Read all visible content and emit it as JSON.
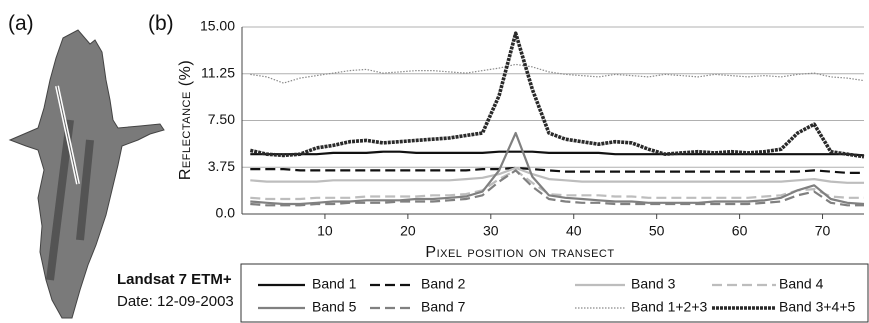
{
  "figure": {
    "panel_a_label": "(a)",
    "panel_b_label": "(b)",
    "image_caption": [
      "Landsat 7 ETM+",
      "Date: 12-09-2003"
    ]
  },
  "chart_data": {
    "type": "line",
    "y_label": "Reflectance (%)",
    "x_label": "Pixel position on transect",
    "x": [
      1,
      3,
      5,
      7,
      9,
      11,
      13,
      15,
      17,
      19,
      21,
      23,
      25,
      27,
      29,
      31,
      33,
      35,
      37,
      39,
      41,
      43,
      45,
      47,
      49,
      51,
      53,
      55,
      57,
      59,
      61,
      63,
      65,
      67,
      69,
      71,
      73,
      75
    ],
    "xlim": [
      0,
      75
    ],
    "xticks": [
      10,
      20,
      30,
      40,
      50,
      60,
      70
    ],
    "ylim": [
      0,
      15
    ],
    "yticks": [
      {
        "value": 0,
        "label": "0.0"
      },
      3.75,
      {
        "value": 7.5,
        "label": "7.50"
      },
      11.25,
      {
        "value": 15,
        "label": "15.00"
      }
    ],
    "grid": true,
    "series": [
      {
        "name": "Band 1",
        "color": "#111111",
        "style": "solid",
        "values": [
          4.8,
          4.8,
          4.8,
          4.8,
          4.8,
          4.9,
          4.9,
          4.9,
          5.0,
          5.0,
          4.9,
          4.9,
          4.9,
          4.9,
          4.9,
          5.0,
          5.0,
          5.0,
          4.9,
          4.9,
          4.9,
          4.9,
          4.8,
          4.8,
          4.8,
          4.8,
          4.8,
          4.8,
          4.8,
          4.8,
          4.8,
          4.8,
          4.8,
          4.8,
          4.8,
          4.8,
          4.8,
          4.7
        ]
      },
      {
        "name": "Band 2",
        "color": "#111111",
        "style": "dashed",
        "values": [
          3.6,
          3.6,
          3.6,
          3.5,
          3.5,
          3.5,
          3.5,
          3.5,
          3.5,
          3.5,
          3.5,
          3.5,
          3.5,
          3.5,
          3.6,
          3.6,
          3.7,
          3.6,
          3.5,
          3.4,
          3.4,
          3.4,
          3.4,
          3.4,
          3.4,
          3.4,
          3.4,
          3.4,
          3.4,
          3.4,
          3.4,
          3.4,
          3.4,
          3.4,
          3.5,
          3.4,
          3.3,
          3.3
        ]
      },
      {
        "name": "Band 3",
        "color": "#bdbdbd",
        "style": "solid",
        "values": [
          2.7,
          2.6,
          2.6,
          2.6,
          2.6,
          2.7,
          2.7,
          2.7,
          2.7,
          2.7,
          2.7,
          2.7,
          2.7,
          2.8,
          2.9,
          3.2,
          3.7,
          3.2,
          2.8,
          2.7,
          2.6,
          2.6,
          2.6,
          2.6,
          2.6,
          2.6,
          2.6,
          2.6,
          2.6,
          2.6,
          2.6,
          2.6,
          2.6,
          2.7,
          2.8,
          2.6,
          2.5,
          2.5
        ]
      },
      {
        "name": "Band 4",
        "color": "#bdbdbd",
        "style": "dashed",
        "values": [
          1.3,
          1.2,
          1.2,
          1.2,
          1.3,
          1.3,
          1.3,
          1.4,
          1.4,
          1.4,
          1.4,
          1.5,
          1.5,
          1.6,
          1.9,
          2.8,
          3.5,
          2.5,
          1.6,
          1.5,
          1.5,
          1.5,
          1.4,
          1.4,
          1.3,
          1.3,
          1.3,
          1.3,
          1.3,
          1.3,
          1.3,
          1.4,
          1.5,
          1.9,
          2.0,
          1.4,
          1.3,
          1.3
        ]
      },
      {
        "name": "Band 5",
        "color": "#808080",
        "style": "solid",
        "values": [
          1.0,
          0.9,
          0.8,
          0.8,
          0.9,
          1.0,
          1.0,
          1.1,
          1.1,
          1.1,
          1.2,
          1.2,
          1.3,
          1.4,
          1.8,
          3.5,
          6.5,
          3.0,
          1.5,
          1.3,
          1.2,
          1.1,
          1.0,
          1.0,
          0.9,
          0.9,
          0.9,
          0.9,
          1.0,
          1.0,
          1.0,
          1.1,
          1.3,
          1.9,
          2.3,
          1.2,
          0.9,
          0.8
        ]
      },
      {
        "name": "Band 7",
        "color": "#808080",
        "style": "dashed",
        "values": [
          0.8,
          0.7,
          0.7,
          0.7,
          0.8,
          0.8,
          0.9,
          0.9,
          0.9,
          1.0,
          1.0,
          1.0,
          1.1,
          1.2,
          1.5,
          2.6,
          3.5,
          2.2,
          1.2,
          1.0,
          0.9,
          0.9,
          0.8,
          0.8,
          0.8,
          0.8,
          0.8,
          0.8,
          0.8,
          0.8,
          0.8,
          0.9,
          1.0,
          1.5,
          1.8,
          0.9,
          0.7,
          0.7
        ]
      },
      {
        "name": "Band 1+2+3",
        "color": "#8a8a8a",
        "style": "dotted",
        "values": [
          11.2,
          11.0,
          10.5,
          10.9,
          11.1,
          11.3,
          11.5,
          11.6,
          11.3,
          11.4,
          11.5,
          11.5,
          11.4,
          11.3,
          11.5,
          11.7,
          12.0,
          11.8,
          11.4,
          11.2,
          11.1,
          11.0,
          11.2,
          11.1,
          11.0,
          11.2,
          11.1,
          11.0,
          11.2,
          11.1,
          11.0,
          11.1,
          11.0,
          11.2,
          11.3,
          11.0,
          10.9,
          10.7
        ]
      },
      {
        "name": "Band 3+4+5",
        "color": "#2a2a2a",
        "style": "beaded",
        "values": [
          5.1,
          4.8,
          4.7,
          4.8,
          5.3,
          5.5,
          5.8,
          5.9,
          5.7,
          5.8,
          5.9,
          6.0,
          6.1,
          6.3,
          6.5,
          9.5,
          14.5,
          10,
          6.5,
          6.0,
          5.8,
          5.6,
          5.8,
          5.7,
          5.2,
          4.8,
          4.9,
          5.0,
          4.9,
          5.0,
          4.9,
          5.0,
          5.2,
          6.5,
          7.2,
          5.0,
          4.8,
          4.6
        ]
      }
    ]
  }
}
